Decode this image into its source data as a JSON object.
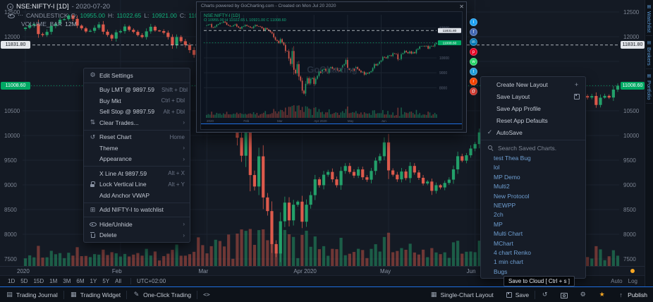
{
  "colors": {
    "up": "#23a06a",
    "down": "#dd5a4c",
    "vol_up": "rgba(35,160,106,0.5)",
    "vol_down": "rgba(221,90,76,0.45)",
    "badge_green": "#00a964",
    "accent": "#1f6fe0",
    "alert": "#f5a623"
  },
  "icons": {
    "gear": "⚙",
    "sliders": "⇅",
    "reset": "↺",
    "grid": "⊞",
    "check": "✓",
    "plus": "+",
    "star": "★",
    "pencil": "✎",
    "journal": "▤",
    "widget": "▦",
    "layout": "▦",
    "refresh": "↺",
    "up": "↑",
    "code": "<>",
    "close": "✕",
    "more": "⋯",
    "panel": "▤",
    "chevron": "›"
  },
  "legend": {
    "title": "NSE:NIFTY-I [1D]",
    "date": "- 2020-07-20",
    "series": "CANDLESTICK",
    "ohlc": [
      {
        "k": "O:",
        "v": "10955.00"
      },
      {
        "k": "H:",
        "v": "11022.65"
      },
      {
        "k": "L:",
        "v": "10921.00"
      },
      {
        "k": "C:",
        "v": "11008.6"
      }
    ],
    "volume_label": "VOLUME_BAR",
    "volume_value": "12M"
  },
  "chart_data": {
    "type": "candlestick",
    "symbol": "NSE:NIFTY-I",
    "interval": "1D",
    "ylim": [
      7350,
      12740
    ],
    "visible_ticks": [
      12500,
      12000,
      10500,
      10000,
      9500,
      9000,
      8500,
      8000,
      7500
    ],
    "badges": {
      "white": {
        "text": "11831.80",
        "price": 11831.8
      },
      "green": {
        "text": "11008.60",
        "price": 11008.6
      }
    },
    "months": [
      {
        "label": "2020",
        "index": 0
      },
      {
        "label": "Feb",
        "index": 22
      },
      {
        "label": "Mar",
        "index": 42
      },
      {
        "label": "Apr 2020",
        "index": 64
      },
      {
        "label": "May",
        "index": 84
      },
      {
        "label": "Jun",
        "index": 104
      }
    ],
    "closes": [
      12182,
      12226,
      12261,
      12053,
      12033,
      12098,
      12215,
      12262,
      12343,
      12355,
      12430,
      12362,
      12224,
      12169,
      12106,
      12119,
      12180,
      12248,
      12101,
      12035,
      11962,
      12089,
      12113,
      12206,
      12138,
      12098,
      12032,
      11993,
      12108,
      12201,
      12126,
      12113,
      12080,
      11993,
      11829,
      11993,
      11908,
      11833,
      11729,
      11633,
      11380,
      11202,
      11133,
      10989,
      11251,
      11036,
      10869,
      10459,
      10451,
      9955,
      9590,
      10458,
      9199,
      8967,
      9578,
      8745,
      8469,
      7801,
      7610,
      8263,
      8641,
      8281,
      8598,
      8660,
      8254,
      8598,
      8792,
      9112,
      8993,
      9206,
      9262,
      9112,
      8993,
      9282,
      9382,
      9262,
      9187,
      9313,
      9154,
      9105,
      9282,
      9491,
      9580,
      9860,
      9293,
      9206,
      9112,
      9270,
      9137,
      9383,
      9251,
      9143,
      9028,
      9067,
      8879,
      8993,
      8948,
      9039,
      9106,
      9314,
      9580,
      9490,
      9599,
      9736,
      9826,
      10062,
      10029,
      9974,
      10142,
      10167,
      10116,
      10305,
      10269,
      10247,
      9902,
      9914,
      10244,
      10312,
      10471,
      10383,
      10305,
      10430,
      10289,
      10383,
      10312,
      10552,
      10607,
      10764,
      10787,
      10800,
      10768,
      10800,
      10618,
      10765,
      10802,
      10768,
      10929,
      11008.6
    ]
  },
  "context_menu": {
    "items": [
      {
        "name": "edit-settings",
        "icon": "gear",
        "label": "Edit Settings"
      },
      {
        "sep": true
      },
      {
        "name": "buy-lmt",
        "label": "Buy LMT @ 9897.59",
        "shortcut": "Shift + Dbl"
      },
      {
        "name": "buy-mkt",
        "label": "Buy Mkt",
        "shortcut": "Ctrl + Dbl"
      },
      {
        "name": "sell-stop",
        "label": "Sell Stop @ 9897.59",
        "shortcut": "Alt + Dbl"
      },
      {
        "name": "clear-trades",
        "icon": "sliders",
        "label": "Clear Trades...",
        "submenu": true
      },
      {
        "sep": true
      },
      {
        "name": "reset-chart",
        "icon": "reset",
        "label": "Reset Chart",
        "shortcut": "Home"
      },
      {
        "name": "theme",
        "label": "Theme",
        "submenu": true
      },
      {
        "name": "appearance",
        "label": "Appearance",
        "submenu": true
      },
      {
        "sep": true
      },
      {
        "name": "x-line",
        "label": "X Line At 9897.59",
        "shortcut": "Alt + X"
      },
      {
        "name": "lock-vertical-line",
        "icon": "lock",
        "label": "Lock Vertical Line",
        "shortcut": "Alt + Y"
      },
      {
        "name": "add-anchor-vwap",
        "label": "Add Anchor VWAP"
      },
      {
        "sep": true
      },
      {
        "name": "add-to-watchlist",
        "icon": "grid",
        "label": "Add NIFTY-I to watchlist"
      },
      {
        "sep": true
      },
      {
        "name": "hide-unhide",
        "icon": "eye",
        "label": "Hide/Unhide",
        "submenu": true
      },
      {
        "name": "delete",
        "icon": "trash",
        "label": "Delete",
        "submenu": true
      }
    ]
  },
  "layout_menu": {
    "items": [
      {
        "name": "create-new-layout",
        "label": "Create New Layout",
        "right_icon": "plus"
      },
      {
        "name": "save-layout",
        "label": "Save Layout",
        "right_icon": "floppy"
      },
      {
        "name": "save-app-profile",
        "label": "Save App Profile"
      },
      {
        "name": "reset-app-defaults",
        "label": "Reset App Defaults"
      },
      {
        "name": "autosave",
        "icon": "check",
        "label": "AutoSave"
      }
    ],
    "search_label": "Search Saved Charts.",
    "saved": [
      "test Thea Bug",
      "lol",
      "MP Demo",
      "Multi2",
      "New Protocol",
      "NEWPP",
      "2ch",
      "MP",
      "Multi Chart",
      "MChart",
      "4 chart Renko",
      "1 min chart",
      "Bugs"
    ]
  },
  "snapshot": {
    "header": "Charts powered by GoCharting.com - Created on Mon Jul 20 2020",
    "legend_title": "NSE:NIFTY-I [1D]",
    "legend_ohlc": "O 10955.00  H 11022.65  L 10921.00  C 11008.60",
    "watermark": "GoCharting",
    "share": [
      {
        "name": "twitter",
        "color": "#1DA1F2",
        "glyph": "t"
      },
      {
        "name": "facebook",
        "color": "#4267B2",
        "glyph": "f"
      },
      {
        "name": "linkedin",
        "color": "#0077B5",
        "glyph": "in"
      },
      {
        "name": "pinterest",
        "color": "#E60023",
        "glyph": "p"
      },
      {
        "name": "whatsapp",
        "color": "#25D366",
        "glyph": "w"
      },
      {
        "name": "telegram",
        "color": "#229ED9",
        "glyph": "t"
      },
      {
        "name": "reddit",
        "color": "#FF4500",
        "glyph": "r"
      },
      {
        "name": "mail",
        "color": "#D93025",
        "glyph": "@"
      }
    ]
  },
  "side_tabs": [
    {
      "label": "Watchlist"
    },
    {
      "label": "Brokers"
    },
    {
      "label": "Portfolio"
    }
  ],
  "range_row": {
    "ranges": [
      "1D",
      "5D",
      "15D",
      "1M",
      "3M",
      "6M",
      "1Y",
      "5Y",
      "All"
    ],
    "timezone": "UTC+02:00",
    "auto": "Auto",
    "log": "Log"
  },
  "tooltip": {
    "text": "Save to Cloud [ Ctrl + s ]"
  },
  "bottom_bar": {
    "trading_journal": "Trading Journal",
    "trading_widget": "Trading Widget",
    "one_click": "One-Click Trading",
    "single_chart": "Single-Chart Layout",
    "save": "Save",
    "publish": "Publish"
  }
}
